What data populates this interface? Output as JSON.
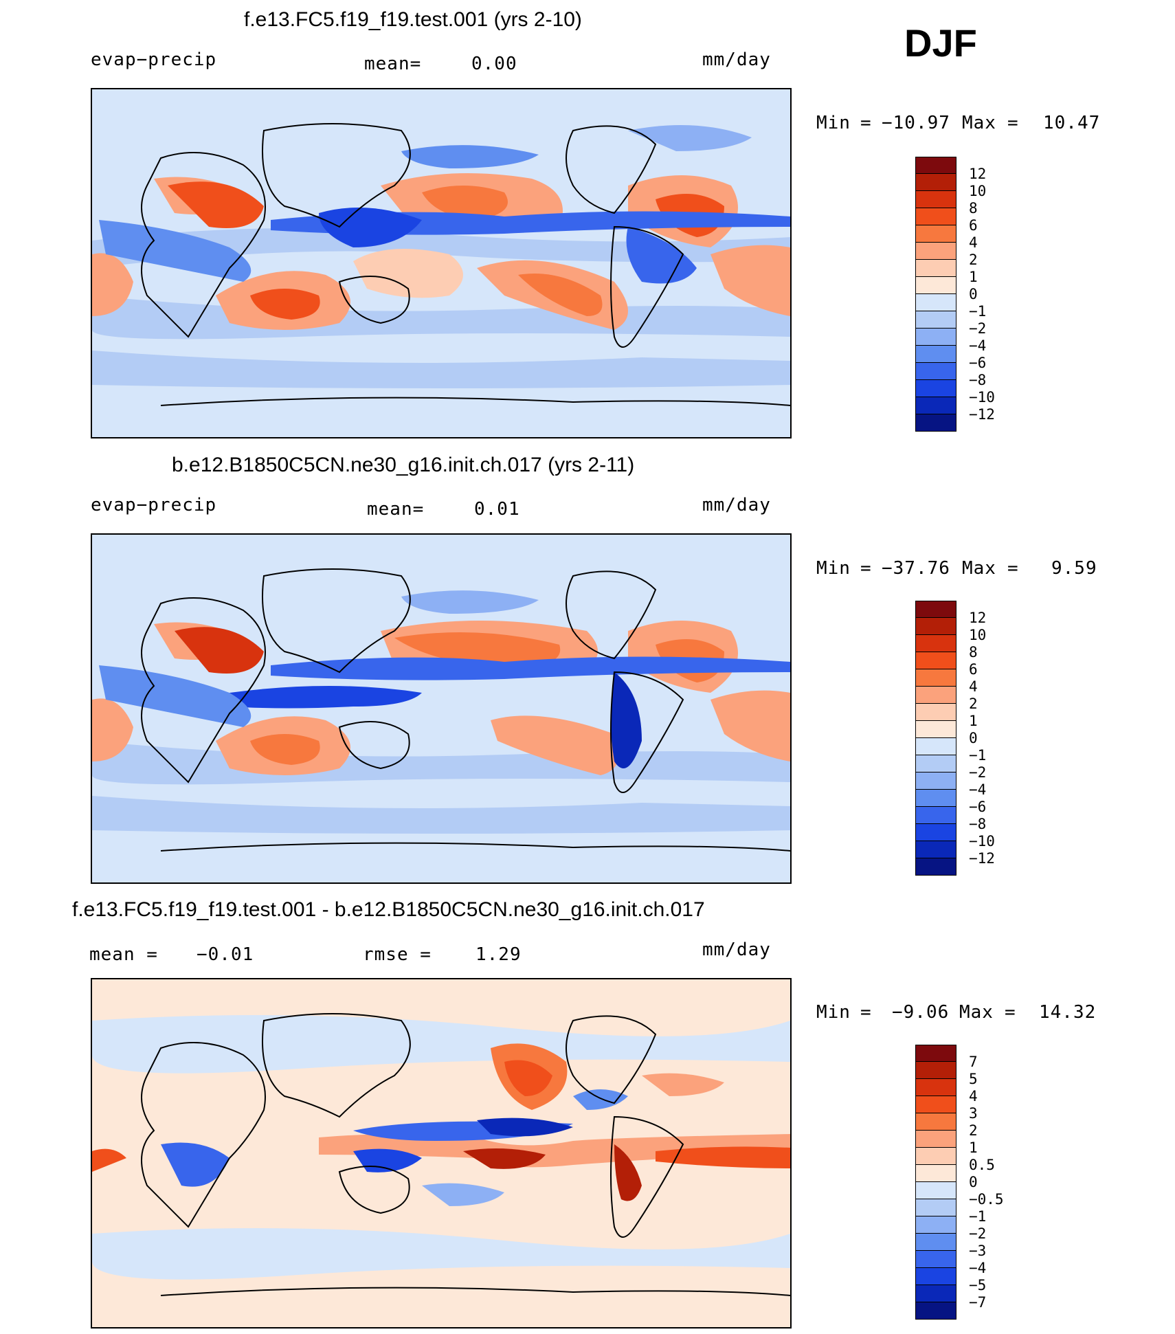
{
  "season": "DJF",
  "palettes": {
    "abs": [
      "#7d0a0d",
      "#b31f07",
      "#d8330e",
      "#f04f1b",
      "#f7783e",
      "#fba27c",
      "#fdcdb3",
      "#fde8d8",
      "#d6e6fa",
      "#b3ccf5",
      "#8db0f4",
      "#5f8ef0",
      "#3865ec",
      "#1a44e2",
      "#0a28b8",
      "#061483"
    ],
    "diff": [
      "#7d0a0d",
      "#b31f07",
      "#d8330e",
      "#f04f1b",
      "#f7783e",
      "#fba27c",
      "#fdcdb3",
      "#fde8d8",
      "#d6e6fa",
      "#b3ccf5",
      "#8db0f4",
      "#5f8ef0",
      "#3865ec",
      "#1a44e2",
      "#0a28b8",
      "#061483"
    ]
  },
  "panels": [
    {
      "title": "f.e13.FC5.f19_f19.test.001 (yrs 2-10)",
      "left_label": "evap−precip",
      "mid_label": "mean=",
      "mid_value": "0.00",
      "right_label": "mm/day",
      "min_label": "Min",
      "min_value": "−10.97",
      "max_label": "Max",
      "max_value": "10.47",
      "colorbar_labels": [
        "12",
        "10",
        "8",
        "6",
        "4",
        "2",
        "1",
        "0",
        "−1",
        "−2",
        "−4",
        "−6",
        "−8",
        "−10",
        "−12"
      ]
    },
    {
      "title": "b.e12.B1850C5CN.ne30_g16.init.ch.017 (yrs 2-11)",
      "left_label": "evap−precip",
      "mid_label": "mean=",
      "mid_value": "0.01",
      "right_label": "mm/day",
      "min_label": "Min",
      "min_value": "−37.76",
      "max_label": "Max",
      "max_value": "9.59",
      "colorbar_labels": [
        "12",
        "10",
        "8",
        "6",
        "4",
        "2",
        "1",
        "0",
        "−1",
        "−2",
        "−4",
        "−6",
        "−8",
        "−10",
        "−12"
      ]
    },
    {
      "title": "f.e13.FC5.f19_f19.test.001 - b.e12.B1850C5CN.ne30_g16.init.ch.017",
      "left_label": "mean =",
      "left_value": "−0.01",
      "mid_label": "rmse =",
      "mid_value": "1.29",
      "right_label": "mm/day",
      "min_label": "Min",
      "min_value": "−9.06",
      "max_label": "Max",
      "max_value": "14.32",
      "colorbar_labels": [
        "7",
        "5",
        "4",
        "3",
        "2",
        "1",
        "0.5",
        "0",
        "−0.5",
        "−1",
        "−2",
        "−3",
        "−4",
        "−5",
        "−7"
      ]
    }
  ]
}
